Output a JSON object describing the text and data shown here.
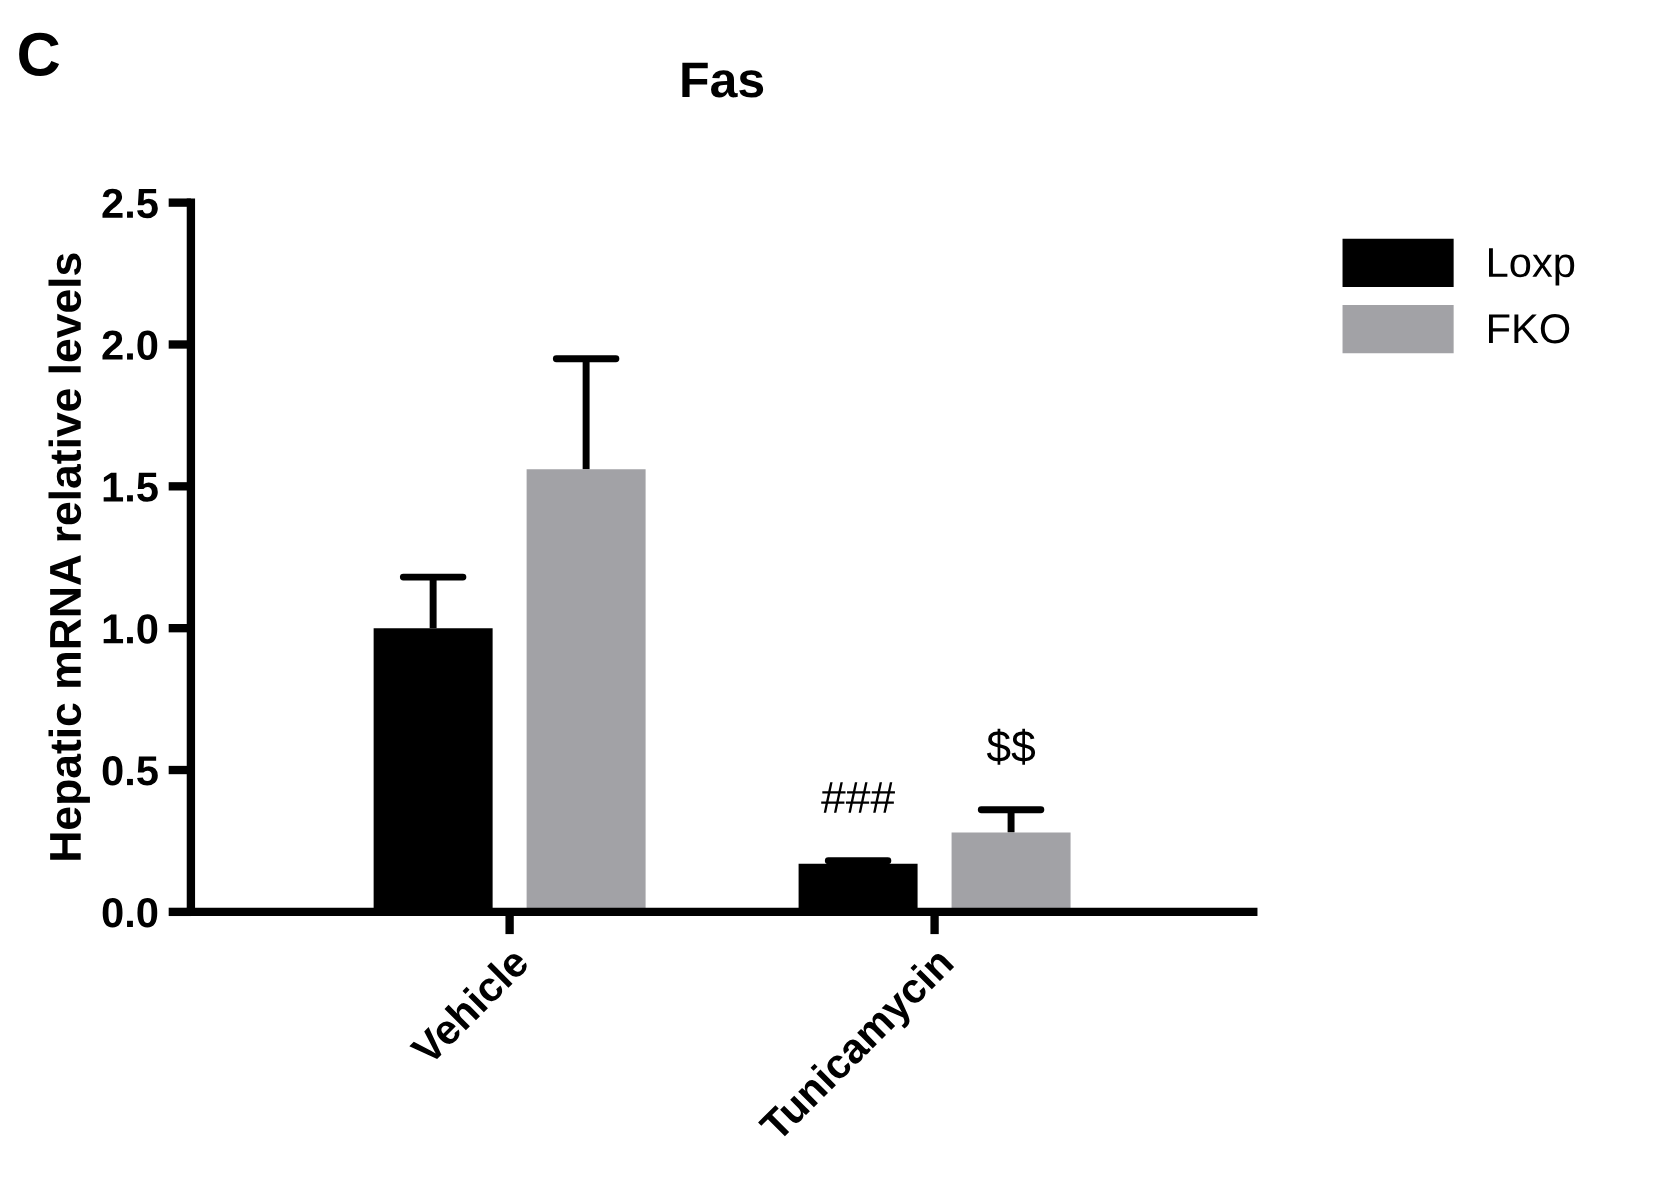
{
  "chart_data": {
    "type": "bar",
    "title": "Fas",
    "ylabel": "Hepatic mRNA relative levels",
    "categories": [
      "Vehicle",
      "Tunicamycin"
    ],
    "series": [
      {
        "name": "Loxp",
        "color": "#000000",
        "values": [
          1.0,
          0.17
        ],
        "errors": [
          [
            1.0,
            1.18
          ],
          [
            0.17,
            0.18
          ]
        ]
      },
      {
        "name": "FKO",
        "color": "#a2a2a6",
        "values": [
          1.56,
          0.28
        ],
        "errors": [
          [
            1.56,
            1.95
          ],
          [
            0.28,
            0.36
          ]
        ]
      }
    ],
    "ylim": [
      0,
      2.5
    ],
    "yticks": [
      {
        "value": 0,
        "label": "0.0"
      },
      {
        "value": 0.5,
        "label": "0.5"
      },
      {
        "value": 1,
        "label": "1.0"
      },
      {
        "value": 1.5,
        "label": "1.5"
      },
      {
        "value": 2,
        "label": "2.0"
      },
      {
        "value": 2.5,
        "label": "2.5"
      }
    ],
    "annotations": [
      "C",
      "###",
      "$$"
    ],
    "legend": "top right",
    "grid": false
  }
}
